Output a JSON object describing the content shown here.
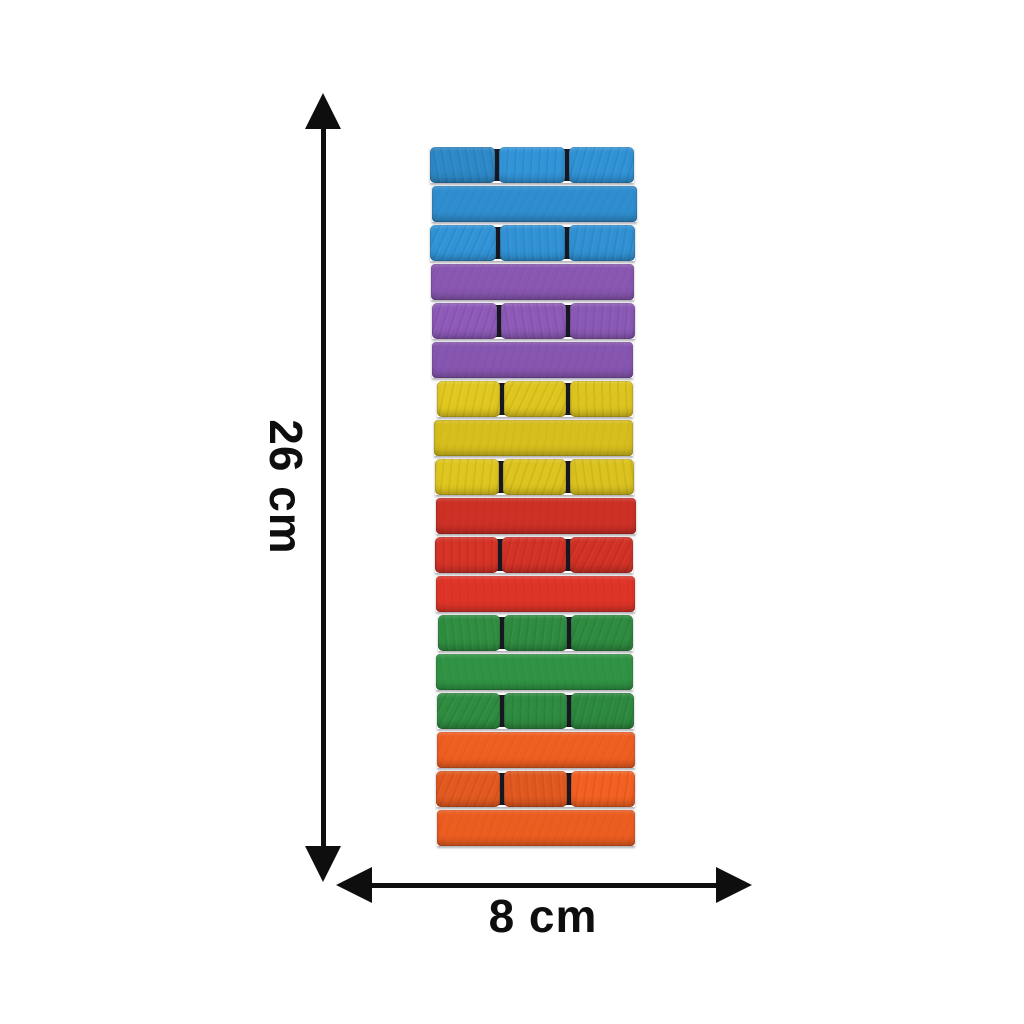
{
  "annotations": {
    "height_label": "26 cm",
    "width_label": "8 cm",
    "arrow_color": "#0e0e0e"
  },
  "tower": {
    "description_colors": [
      "blue",
      "purple",
      "yellow",
      "red",
      "green",
      "orange"
    ],
    "block_colors": {
      "blue": "#2f8ecf",
      "purple": "#8a58b4",
      "yellow": "#ddc41e",
      "red": "#d63226",
      "green": "#2f8f41",
      "orange": "#ea5c20"
    },
    "blocks_per_ends_row": 3,
    "rows": [
      {
        "color": "blue",
        "pattern": "ends"
      },
      {
        "color": "blue",
        "pattern": "side"
      },
      {
        "color": "blue",
        "pattern": "ends"
      },
      {
        "color": "purple",
        "pattern": "side"
      },
      {
        "color": "purple",
        "pattern": "ends"
      },
      {
        "color": "purple",
        "pattern": "side"
      },
      {
        "color": "yellow",
        "pattern": "ends"
      },
      {
        "color": "yellow",
        "pattern": "side"
      },
      {
        "color": "yellow",
        "pattern": "ends"
      },
      {
        "color": "red",
        "pattern": "side"
      },
      {
        "color": "red",
        "pattern": "ends"
      },
      {
        "color": "red",
        "pattern": "side"
      },
      {
        "color": "green",
        "pattern": "ends"
      },
      {
        "color": "green",
        "pattern": "side"
      },
      {
        "color": "green",
        "pattern": "ends"
      },
      {
        "color": "orange",
        "pattern": "side"
      },
      {
        "color": "orange",
        "pattern": "ends"
      },
      {
        "color": "orange",
        "pattern": "side"
      }
    ]
  }
}
